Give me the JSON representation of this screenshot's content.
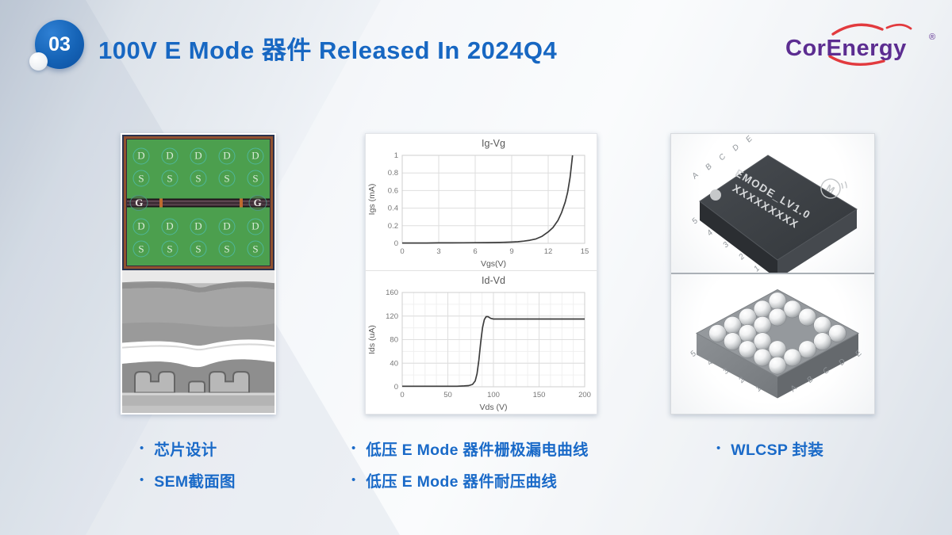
{
  "slide": {
    "badge": "03",
    "title": "100V E Mode 器件 Released In 2024Q4",
    "logo_text": "CorEnergy",
    "logo_reg": "®"
  },
  "left_panel": {
    "pad_rows_top": [
      [
        "D",
        "D",
        "D",
        "D",
        "D"
      ],
      [
        "S",
        "S",
        "S",
        "S",
        "S"
      ]
    ],
    "pad_rows_bottom": [
      [
        "D",
        "D",
        "D",
        "D",
        "D"
      ],
      [
        "S",
        "S",
        "S",
        "S",
        "S"
      ]
    ],
    "gate_label": "G"
  },
  "chart_data": [
    {
      "type": "line",
      "title": "Ig-Vg",
      "xlabel": "Vgs(V)",
      "ylabel": "Igs (mA)",
      "xlim": [
        0,
        15
      ],
      "ylim": [
        0,
        1
      ],
      "xticks": [
        0,
        3,
        6,
        9,
        12,
        15
      ],
      "yticks": [
        0,
        0.2,
        0.4,
        0.6,
        0.8,
        1
      ],
      "grid": true,
      "legend": false,
      "series": [
        {
          "name": "Igs",
          "x": [
            0,
            1,
            2,
            3,
            4,
            5,
            6,
            7,
            8,
            9,
            9.5,
            10,
            10.5,
            11,
            11.5,
            12,
            12.4,
            12.8,
            13.1,
            13.4,
            13.6,
            13.8,
            13.9,
            14
          ],
          "y": [
            0.004,
            0.004,
            0.004,
            0.005,
            0.005,
            0.006,
            0.007,
            0.008,
            0.01,
            0.014,
            0.018,
            0.025,
            0.035,
            0.05,
            0.08,
            0.13,
            0.18,
            0.26,
            0.35,
            0.47,
            0.58,
            0.75,
            0.87,
            1.0
          ]
        }
      ]
    },
    {
      "type": "line",
      "title": "Id-Vd",
      "xlabel": "Vds (V)",
      "ylabel": "Ids (uA)",
      "xlim": [
        0,
        200
      ],
      "ylim": [
        0,
        160
      ],
      "xticks": [
        0,
        50,
        100,
        150,
        200
      ],
      "yticks": [
        0,
        40,
        80,
        120,
        160
      ],
      "minor_x_step": 12.5,
      "minor_y_step": 20,
      "grid": true,
      "legend": false,
      "series": [
        {
          "name": "Ids",
          "x": [
            0,
            20,
            40,
            60,
            68,
            73,
            77,
            80,
            82,
            84,
            86,
            88,
            90,
            92,
            94,
            97,
            100,
            105,
            115,
            130,
            150,
            175,
            200
          ],
          "y": [
            1,
            1,
            1,
            1,
            1.5,
            2,
            4,
            10,
            22,
            45,
            75,
            100,
            114,
            119,
            119,
            116,
            115,
            115,
            115,
            115,
            115,
            115,
            115
          ]
        }
      ]
    }
  ],
  "right_panel": {
    "top_chip": {
      "marking_line1": "EMODE_LV1.0",
      "marking_line2": "XXXXXXXXX",
      "logo_letter": "M",
      "edge_letters": [
        "A",
        "B",
        "C",
        "D",
        "E"
      ],
      "edge_numbers": [
        "5",
        "4",
        "3",
        "2",
        "1"
      ]
    },
    "bottom_chip": {
      "ball_grid": "5x5",
      "missing_balls": [
        [
          3,
          3
        ],
        [
          3,
          4
        ],
        [
          4,
          3
        ],
        [
          4,
          4
        ]
      ],
      "edge_numbers": [
        "5",
        "4",
        "3",
        "2",
        "1"
      ],
      "edge_letters": [
        "A",
        "B",
        "C",
        "D",
        "E"
      ]
    }
  },
  "bullets": {
    "bullet_char": "•",
    "left": [
      "芯片设计",
      "SEM截面图"
    ],
    "middle": [
      "低压 E Mode 器件栅极漏电曲线",
      "低压 E Mode 器件耐压曲线"
    ],
    "right": [
      "WLCSP 封装"
    ]
  },
  "colors": {
    "accent_blue": "#1a6ac8",
    "logo_purple": "#5c2d91",
    "logo_red": "#e23a3e",
    "pcb_green": "#4c9f4e",
    "pad_teal": "#4fb79a",
    "chip_dark": "#3b3f44",
    "chip_gray": "#95999d"
  }
}
